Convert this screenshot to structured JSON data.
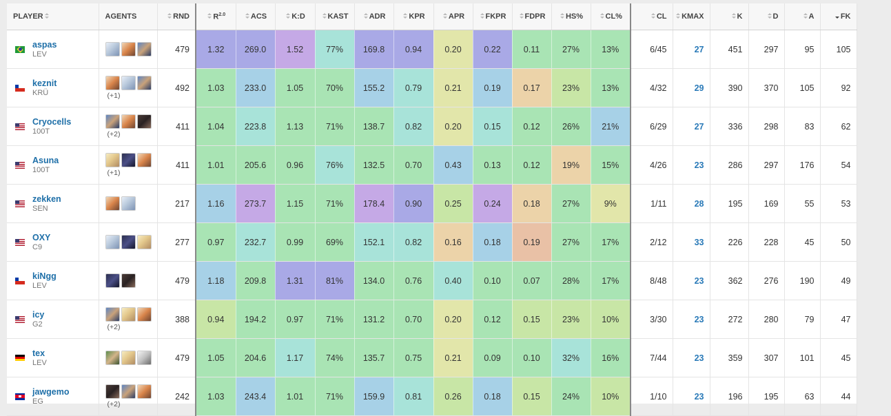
{
  "headers": {
    "player": "PLAYER",
    "agents": "AGENTS",
    "rnd": "RND",
    "rating": "R",
    "rating_sup": "2.0",
    "acs": "ACS",
    "kd": "K:D",
    "kast": "KAST",
    "adr": "ADR",
    "kpr": "KPR",
    "apr": "APR",
    "fkpr": "FKPR",
    "fdpr": "FDPR",
    "hs": "HS%",
    "clp": "CL%",
    "cl": "CL",
    "kmax": "KMAX",
    "k": "K",
    "d": "D",
    "a": "A",
    "fk": "FK"
  },
  "sort": {
    "column": "fk",
    "direction": "desc"
  },
  "colors": {
    "purple": "#a9a9e6",
    "lavender": "#c5a9e6",
    "blue": "#a7d1e7",
    "teal": "#a8e3d9",
    "green": "#a9e4b4",
    "yellowgreen": "#c8e6a6",
    "yellow": "#e2e6aa",
    "peach": "#ecd3a9",
    "salmon": "#e9c1a6",
    "link": "#1e6fa8"
  },
  "players": [
    {
      "name": "aspas",
      "team": "LEV",
      "flag": "br",
      "agents": [
        "sky-blue",
        "orange-haired"
      ],
      "agents_row2": [
        "blue-armored"
      ],
      "more": "",
      "rnd": "479",
      "rating": "1.32",
      "acs": "269.0",
      "kd": "1.52",
      "kast": "77%",
      "adr": "169.8",
      "kpr": "0.94",
      "apr": "0.20",
      "fkpr": "0.22",
      "fdpr": "0.11",
      "hs": "27%",
      "clp": "13%",
      "cl": "6/45",
      "kmax": "27",
      "k": "451",
      "d": "297",
      "a": "95",
      "fk": "105",
      "c": [
        "purple",
        "purple",
        "lavender",
        "teal",
        "purple",
        "purple",
        "yellow",
        "purple",
        "green",
        "green",
        "green"
      ]
    },
    {
      "name": "keznit",
      "team": "KRÜ",
      "flag": "cl",
      "agents": [
        "orange-haired",
        "sky-blue"
      ],
      "agents_row2": [
        "blue-armored"
      ],
      "more": "(+1)",
      "rnd": "492",
      "rating": "1.03",
      "acs": "233.0",
      "kd": "1.05",
      "kast": "70%",
      "adr": "155.2",
      "kpr": "0.79",
      "apr": "0.21",
      "fkpr": "0.19",
      "fdpr": "0.17",
      "hs": "23%",
      "clp": "13%",
      "cl": "4/32",
      "kmax": "29",
      "k": "390",
      "d": "370",
      "a": "105",
      "fk": "92",
      "c": [
        "green",
        "blue",
        "green",
        "green",
        "blue",
        "teal",
        "yellow",
        "blue",
        "peach",
        "yellowgreen",
        "green"
      ]
    },
    {
      "name": "Cryocells",
      "team": "100T",
      "flag": "us",
      "agents": [
        "blue-armored",
        "orange-haired"
      ],
      "agents_row2": [
        "dark-skinned"
      ],
      "more": "(+2)",
      "rnd": "411",
      "rating": "1.04",
      "acs": "223.8",
      "kd": "1.13",
      "kast": "71%",
      "adr": "138.7",
      "kpr": "0.82",
      "apr": "0.20",
      "fkpr": "0.15",
      "fdpr": "0.12",
      "hs": "26%",
      "clp": "21%",
      "cl": "6/29",
      "kmax": "27",
      "k": "336",
      "d": "298",
      "a": "83",
      "fk": "62",
      "c": [
        "green",
        "teal",
        "green",
        "green",
        "green",
        "teal",
        "yellow",
        "teal",
        "green",
        "green",
        "blue"
      ]
    },
    {
      "name": "Asuna",
      "team": "100T",
      "flag": "us",
      "agents": [
        "blonde",
        "dark-hooded"
      ],
      "agents_row2": [
        "orange-haired"
      ],
      "more": "(+1)",
      "rnd": "411",
      "rating": "1.01",
      "acs": "205.6",
      "kd": "0.96",
      "kast": "76%",
      "adr": "132.5",
      "kpr": "0.70",
      "apr": "0.43",
      "fkpr": "0.13",
      "fdpr": "0.12",
      "hs": "19%",
      "clp": "15%",
      "cl": "4/26",
      "kmax": "23",
      "k": "286",
      "d": "297",
      "a": "176",
      "fk": "54",
      "c": [
        "green",
        "green",
        "green",
        "teal",
        "green",
        "green",
        "blue",
        "green",
        "green",
        "peach",
        "green"
      ]
    },
    {
      "name": "zekken",
      "team": "SEN",
      "flag": "us",
      "agents": [
        "orange-haired",
        "sky-blue"
      ],
      "agents_row2": [],
      "more": "",
      "rnd": "217",
      "rating": "1.16",
      "acs": "273.7",
      "kd": "1.15",
      "kast": "71%",
      "adr": "178.4",
      "kpr": "0.90",
      "apr": "0.25",
      "fkpr": "0.24",
      "fdpr": "0.18",
      "hs": "27%",
      "clp": "9%",
      "cl": "1/11",
      "kmax": "28",
      "k": "195",
      "d": "169",
      "a": "55",
      "fk": "53",
      "c": [
        "blue",
        "lavender",
        "green",
        "green",
        "lavender",
        "purple",
        "yellowgreen",
        "lavender",
        "peach",
        "green",
        "yellow"
      ]
    },
    {
      "name": "OXY",
      "team": "C9",
      "flag": "us",
      "agents": [
        "sky-blue",
        "dark-hooded"
      ],
      "agents_row2": [
        "blonde"
      ],
      "more": "",
      "rnd": "277",
      "rating": "0.97",
      "acs": "232.7",
      "kd": "0.99",
      "kast": "69%",
      "adr": "152.1",
      "kpr": "0.82",
      "apr": "0.16",
      "fkpr": "0.18",
      "fdpr": "0.19",
      "hs": "27%",
      "clp": "17%",
      "cl": "2/12",
      "kmax": "33",
      "k": "226",
      "d": "228",
      "a": "45",
      "fk": "50",
      "c": [
        "green",
        "teal",
        "green",
        "green",
        "teal",
        "teal",
        "peach",
        "blue",
        "salmon",
        "green",
        "green"
      ]
    },
    {
      "name": "kiNgg",
      "team": "LEV",
      "flag": "cl",
      "agents": [
        "dark-hooded",
        "dark-skinned"
      ],
      "agents_row2": [],
      "more": "",
      "rnd": "479",
      "rating": "1.18",
      "acs": "209.8",
      "kd": "1.31",
      "kast": "81%",
      "adr": "134.0",
      "kpr": "0.76",
      "apr": "0.40",
      "fkpr": "0.10",
      "fdpr": "0.07",
      "hs": "28%",
      "clp": "17%",
      "cl": "8/48",
      "kmax": "23",
      "k": "362",
      "d": "276",
      "a": "190",
      "fk": "49",
      "c": [
        "blue",
        "green",
        "purple",
        "purple",
        "green",
        "green",
        "teal",
        "green",
        "green",
        "green",
        "green"
      ]
    },
    {
      "name": "icy",
      "team": "G2",
      "flag": "us",
      "agents": [
        "blue-armored",
        "blonde"
      ],
      "agents_row2": [
        "orange-haired"
      ],
      "more": "(+2)",
      "rnd": "388",
      "rating": "0.94",
      "acs": "194.2",
      "kd": "0.97",
      "kast": "71%",
      "adr": "131.2",
      "kpr": "0.70",
      "apr": "0.20",
      "fkpr": "0.12",
      "fdpr": "0.15",
      "hs": "23%",
      "clp": "10%",
      "cl": "3/30",
      "kmax": "23",
      "k": "272",
      "d": "280",
      "a": "79",
      "fk": "47",
      "c": [
        "yellowgreen",
        "green",
        "green",
        "green",
        "green",
        "green",
        "yellow",
        "green",
        "yellowgreen",
        "yellowgreen",
        "yellowgreen"
      ]
    },
    {
      "name": "tex",
      "team": "LEV",
      "flag": "de",
      "agents": [
        "green-haired",
        "blonde"
      ],
      "agents_row2": [
        "grey-robot"
      ],
      "more": "",
      "rnd": "479",
      "rating": "1.05",
      "acs": "204.6",
      "kd": "1.17",
      "kast": "74%",
      "adr": "135.7",
      "kpr": "0.75",
      "apr": "0.21",
      "fkpr": "0.09",
      "fdpr": "0.10",
      "hs": "32%",
      "clp": "16%",
      "cl": "7/44",
      "kmax": "23",
      "k": "359",
      "d": "307",
      "a": "101",
      "fk": "45",
      "c": [
        "green",
        "green",
        "teal",
        "green",
        "green",
        "green",
        "yellow",
        "green",
        "green",
        "teal",
        "green"
      ]
    },
    {
      "name": "jawgemo",
      "team": "EG",
      "flag": "kh",
      "agents": [
        "dark-skinned",
        "blue-armored"
      ],
      "agents_row2": [
        "orange-haired"
      ],
      "more": "(+2)",
      "rnd": "242",
      "rating": "1.03",
      "acs": "243.4",
      "kd": "1.01",
      "kast": "71%",
      "adr": "159.9",
      "kpr": "0.81",
      "apr": "0.26",
      "fkpr": "0.18",
      "fdpr": "0.15",
      "hs": "24%",
      "clp": "10%",
      "cl": "1/10",
      "kmax": "23",
      "k": "196",
      "d": "195",
      "a": "63",
      "fk": "44",
      "c": [
        "green",
        "blue",
        "green",
        "green",
        "blue",
        "teal",
        "yellowgreen",
        "blue",
        "yellowgreen",
        "green",
        "yellowgreen"
      ]
    }
  ]
}
